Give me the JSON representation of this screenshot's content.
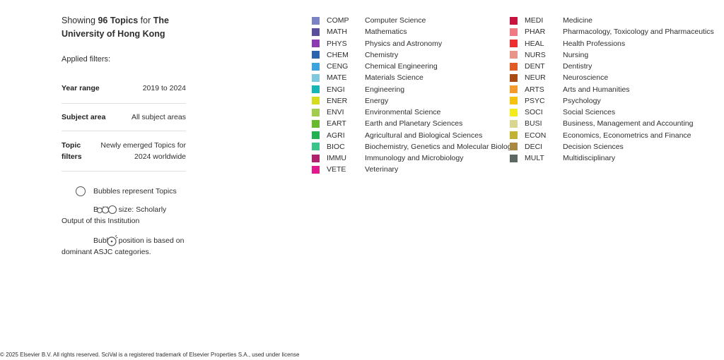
{
  "heading": {
    "prefix": "Showing",
    "count": "96 Topics",
    "middle": "for",
    "institution": "The University of Hong Kong"
  },
  "applied_filters_label": "Applied filters:",
  "filters": [
    {
      "label": "Year range",
      "value": "2019 to 2024"
    },
    {
      "label": "Subject area",
      "value": "All subject areas"
    },
    {
      "label": "Topic filters",
      "value": "Newly emerged Topics for 2024 worldwide"
    }
  ],
  "notes": {
    "bubbles": "Bubbles represent Topics",
    "size": "Bubble size: Scholarly Output of this Institution",
    "position": "Bubble position is based on dominant ASJC categories."
  },
  "categories_left": [
    {
      "code": "COMP",
      "name": "Computer Science",
      "color": "#7b83c4"
    },
    {
      "code": "MATH",
      "name": "Mathematics",
      "color": "#5a4f9a"
    },
    {
      "code": "PHYS",
      "name": "Physics and Astronomy",
      "color": "#8a3cb0"
    },
    {
      "code": "CHEM",
      "name": "Chemistry",
      "color": "#2b64ad"
    },
    {
      "code": "CENG",
      "name": "Chemical Engineering",
      "color": "#3aa3e0"
    },
    {
      "code": "MATE",
      "name": "Materials Science",
      "color": "#7fc8de"
    },
    {
      "code": "ENGI",
      "name": "Engineering",
      "color": "#17b5b5"
    },
    {
      "code": "ENER",
      "name": "Energy",
      "color": "#d6dc1d"
    },
    {
      "code": "ENVI",
      "name": "Environmental Science",
      "color": "#a1cc4c"
    },
    {
      "code": "EART",
      "name": "Earth and Planetary Sciences",
      "color": "#6aba2e"
    },
    {
      "code": "AGRI",
      "name": "Agricultural and Biological Sciences",
      "color": "#22b152"
    },
    {
      "code": "BIOC",
      "name": "Biochemistry, Genetics and Molecular Biology",
      "color": "#3bc48a"
    },
    {
      "code": "IMMU",
      "name": "Immunology and Microbiology",
      "color": "#b0226e"
    },
    {
      "code": "VETE",
      "name": "Veterinary",
      "color": "#e0198e"
    }
  ],
  "categories_right": [
    {
      "code": "MEDI",
      "name": "Medicine",
      "color": "#c9123d"
    },
    {
      "code": "PHAR",
      "name": "Pharmacology, Toxicology and Pharmaceutics",
      "color": "#f07a84"
    },
    {
      "code": "HEAL",
      "name": "Health Professions",
      "color": "#ee2f2f"
    },
    {
      "code": "NURS",
      "name": "Nursing",
      "color": "#e8948a"
    },
    {
      "code": "DENT",
      "name": "Dentistry",
      "color": "#e25a23"
    },
    {
      "code": "NEUR",
      "name": "Neuroscience",
      "color": "#a84a12"
    },
    {
      "code": "ARTS",
      "name": "Arts and Humanities",
      "color": "#f59a2c"
    },
    {
      "code": "PSYC",
      "name": "Psychology",
      "color": "#f6c20c"
    },
    {
      "code": "SOCI",
      "name": "Social Sciences",
      "color": "#f3ec1a"
    },
    {
      "code": "BUSI",
      "name": "Business, Management and Accounting",
      "color": "#d9d78f"
    },
    {
      "code": "ECON",
      "name": "Economics, Econometrics and Finance",
      "color": "#c2b233"
    },
    {
      "code": "DECI",
      "name": "Decision Sciences",
      "color": "#a98842"
    },
    {
      "code": "MULT",
      "name": "Multidisciplinary",
      "color": "#5e6862"
    }
  ],
  "footer": "© 2025 Elsevier B.V. All rights reserved. SciVal is a registered trademark of Elsevier Properties S.A., used under license"
}
